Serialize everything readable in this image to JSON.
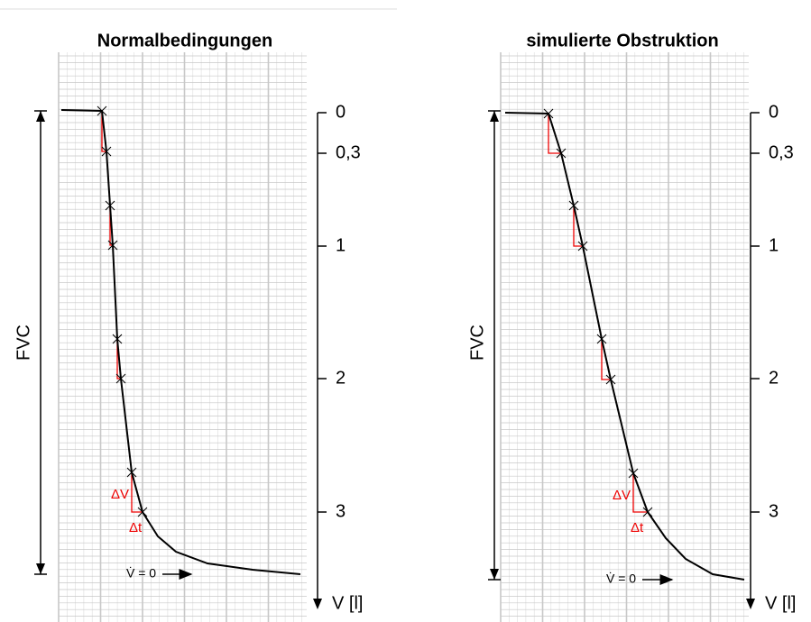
{
  "panels": [
    {
      "title": "Normalbedingungen",
      "fvc_label": "FVC",
      "axis_ticks": [
        "0",
        "0,3",
        "1",
        "2",
        "3"
      ],
      "axis_label": "V [l]",
      "delta_v": "ΔV",
      "delta_t": "Δt",
      "flow_label": "V̇ = 0"
    },
    {
      "title": "simulierte Obstruktion",
      "fvc_label": "FVC",
      "axis_ticks": [
        "0",
        "0,3",
        "1",
        "2",
        "3"
      ],
      "axis_label": "V [l]",
      "delta_v": "ΔV",
      "delta_t": "Δt",
      "flow_label": "V̇ = 0"
    }
  ]
}
